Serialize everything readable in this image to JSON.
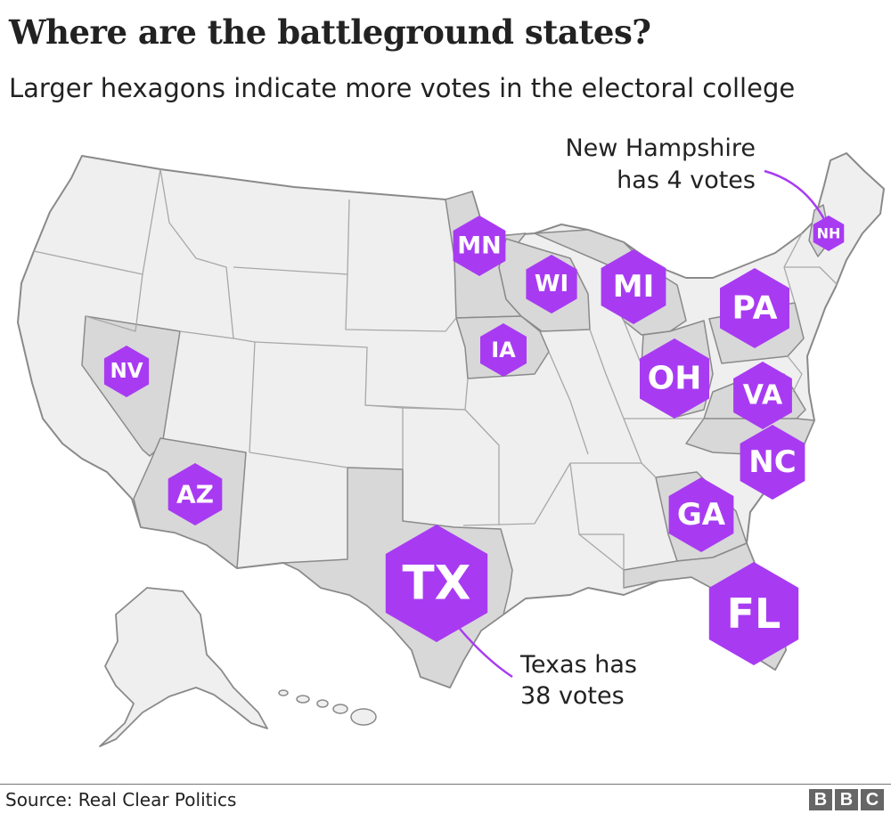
{
  "title": "Where are the battleground states?",
  "subtitle": "Larger hexagons indicate more votes in the electoral college",
  "source": "Source: Real Clear Politics",
  "logo": "BBC",
  "colors": {
    "hexagon": "#a83bf2",
    "battleground_fill": "#d8d8d8",
    "other_fill": "#efefef",
    "border": "#8a8a8a",
    "leader_line": "#a83bf2"
  },
  "battleground_states": [
    {
      "abbr": "MN"
    },
    {
      "abbr": "WI"
    },
    {
      "abbr": "MI"
    },
    {
      "abbr": "IA"
    },
    {
      "abbr": "NV"
    },
    {
      "abbr": "PA"
    },
    {
      "abbr": "OH"
    },
    {
      "abbr": "VA"
    },
    {
      "abbr": "NC"
    },
    {
      "abbr": "AZ"
    },
    {
      "abbr": "GA"
    },
    {
      "abbr": "TX"
    },
    {
      "abbr": "FL"
    },
    {
      "abbr": "NH"
    }
  ],
  "annotations": {
    "new_hampshire": {
      "line1": "New Hampshire",
      "line2": "has 4 votes"
    },
    "texas": {
      "line1": "Texas has",
      "line2": "38 votes"
    }
  }
}
